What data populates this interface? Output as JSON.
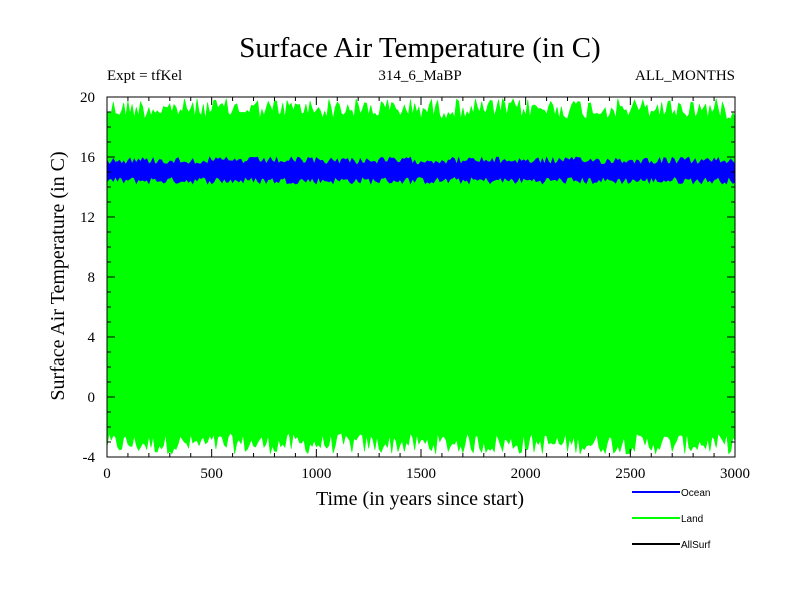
{
  "chart_data": {
    "type": "line",
    "title": "Surface Air Temperature (in C)",
    "subtitle_left": "Expt = tfKel",
    "subtitle_center": "314_6_MaBP",
    "subtitle_right": "ALL_MONTHS",
    "xlabel": "Time (in years since start)",
    "ylabel": "Surface Air Temperature (in C)",
    "xlim": [
      0,
      3000
    ],
    "ylim": [
      -4,
      20
    ],
    "x_ticks": [
      0,
      500,
      1000,
      1500,
      2000,
      2500,
      3000
    ],
    "y_ticks": [
      -4,
      0,
      4,
      8,
      12,
      16,
      20
    ],
    "x_minor_step": 100,
    "y_minor_step": 1,
    "grid": false,
    "legend_position": "bottom-right",
    "series": [
      {
        "name": "Ocean",
        "color": "#0000ff",
        "mean": 15.0,
        "min": 14.2,
        "max": 16.0
      },
      {
        "name": "Land",
        "color": "#00ff00",
        "mean": 8.0,
        "min": -3.8,
        "max": 19.9
      },
      {
        "name": "AllSurf",
        "color": "#000000"
      }
    ]
  }
}
